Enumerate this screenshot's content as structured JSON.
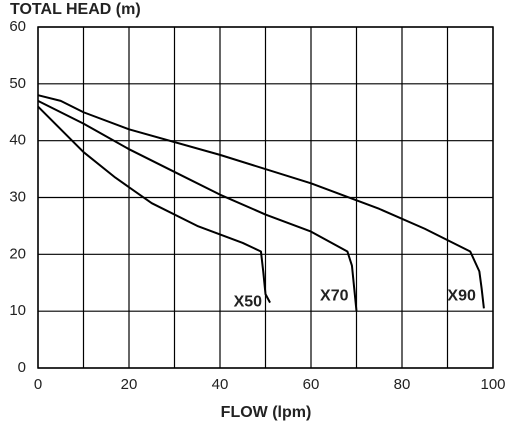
{
  "chart_data": {
    "type": "line",
    "title": "TOTAL HEAD (m)",
    "x_label": "FLOW (lpm)",
    "xlim": [
      0,
      100
    ],
    "xticks": [
      0,
      20,
      40,
      60,
      80,
      100
    ],
    "xminor_ticks": [
      10,
      30,
      50,
      70,
      90
    ],
    "ylim": [
      0,
      60
    ],
    "yticks": [
      0,
      10,
      20,
      30,
      40,
      50,
      60
    ],
    "grid": true,
    "series": [
      {
        "name": "X50",
        "color": "#000000",
        "x": [
          0,
          5,
          10,
          17,
          25,
          35,
          45,
          49,
          49.5,
          50,
          51
        ],
        "values": [
          46,
          42,
          38,
          33.5,
          29,
          25,
          22,
          20.5,
          17,
          13,
          11.5
        ]
      },
      {
        "name": "X70",
        "color": "#000000",
        "x": [
          0,
          10,
          20,
          30,
          40,
          50,
          60,
          68,
          69,
          69.5,
          70
        ],
        "values": [
          47,
          43,
          38.5,
          34.5,
          30.5,
          27,
          24,
          20.5,
          18,
          14,
          10
        ]
      },
      {
        "name": "X90",
        "color": "#000000",
        "x": [
          0,
          5,
          10,
          20,
          40,
          60,
          75,
          85,
          95,
          97,
          97.5,
          98
        ],
        "values": [
          48,
          47,
          45,
          42,
          37.5,
          32.5,
          28,
          24.5,
          20.5,
          17,
          14,
          10.5
        ]
      }
    ]
  }
}
